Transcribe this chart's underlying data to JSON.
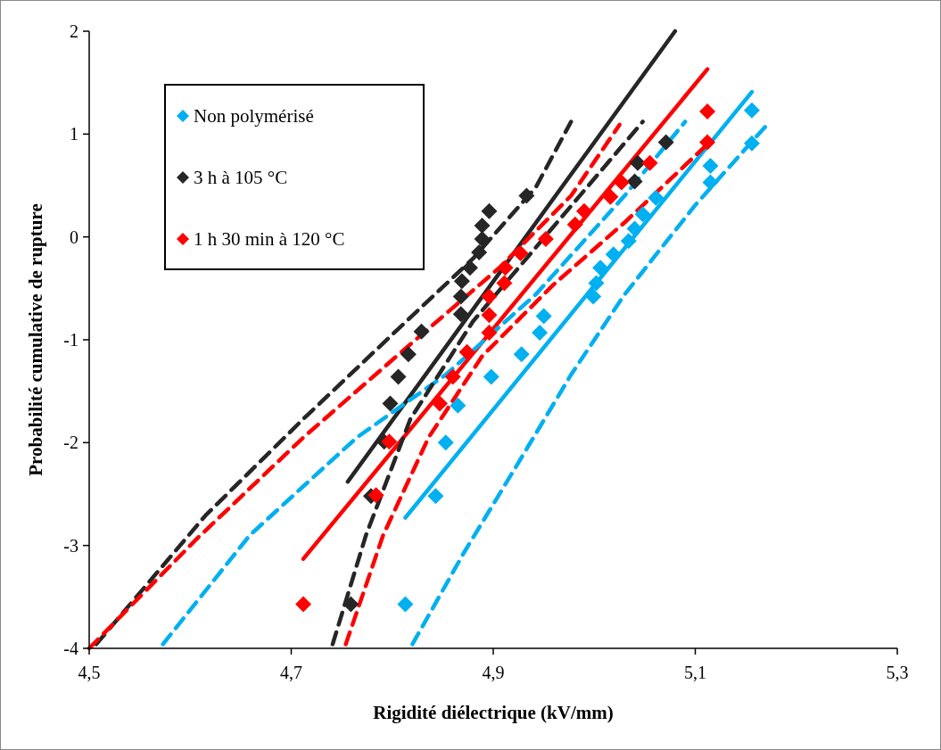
{
  "chart_data": {
    "type": "scatter",
    "xlabel": "Rigidité diélectrique (kV/mm)",
    "ylabel": "Probabilité cumulative de rupture",
    "xlim": [
      4.5,
      5.3
    ],
    "xticks": [
      {
        "value": 4.5,
        "label": "4,5"
      },
      {
        "value": 4.7,
        "label": "4,7"
      },
      {
        "value": 4.9,
        "label": "4,9"
      },
      {
        "value": 5.1,
        "label": "5,1"
      },
      {
        "value": 5.3,
        "label": "5,3"
      }
    ],
    "ylim": [
      -4,
      2
    ],
    "yticks": [
      -4,
      -3,
      -2,
      -1,
      0,
      1,
      2
    ],
    "grid": false,
    "legend": "top left",
    "marker": "diamond",
    "series": [
      {
        "name": "Non polymérisé",
        "color": "#00b0f0",
        "x": [
          4.813,
          4.843,
          4.853,
          4.865,
          4.898,
          4.928,
          4.946,
          4.95,
          4.999,
          5.002,
          5.006,
          5.019,
          5.034,
          5.04,
          5.048,
          5.061,
          5.115,
          5.115,
          5.156,
          5.156
        ],
        "values": [
          -3.57,
          -2.52,
          -2.0,
          -1.64,
          -1.36,
          -1.14,
          -0.93,
          -0.77,
          -0.58,
          -0.45,
          -0.3,
          -0.17,
          -0.04,
          0.08,
          0.22,
          0.38,
          0.53,
          0.69,
          0.91,
          1.23
        ]
      },
      {
        "name": "3 h à 105 °C",
        "color": "#262626",
        "x": [
          4.759,
          4.779,
          4.792,
          4.798,
          4.806,
          4.816,
          4.829,
          4.868,
          4.868,
          4.869,
          4.877,
          4.886,
          4.889,
          4.889,
          4.896,
          4.933,
          5.04,
          5.043,
          5.071
        ],
        "values": [
          -3.57,
          -2.52,
          -1.99,
          -1.62,
          -1.36,
          -1.14,
          -0.92,
          -0.75,
          -0.58,
          -0.43,
          -0.3,
          -0.15,
          -0.02,
          0.11,
          0.25,
          0.4,
          0.54,
          0.72,
          0.92
        ]
      },
      {
        "name": "1 h 30 min à 120 °C",
        "color": "#ff0000",
        "x": [
          4.712,
          4.784,
          4.797,
          4.847,
          4.86,
          4.874,
          4.896,
          4.896,
          4.896,
          4.911,
          4.912,
          4.927,
          4.952,
          4.981,
          4.99,
          5.016,
          5.027,
          5.055,
          5.112,
          5.112
        ],
        "values": [
          -3.57,
          -2.51,
          -1.99,
          -1.62,
          -1.36,
          -1.12,
          -0.93,
          -0.76,
          -0.58,
          -0.45,
          -0.3,
          -0.16,
          -0.02,
          0.12,
          0.25,
          0.39,
          0.53,
          0.72,
          0.92,
          1.22
        ]
      },
      {
        "type": "line",
        "color": "#00b0f0",
        "line_style": "solid",
        "marker": "none",
        "x": [
          4.813,
          5.156
        ],
        "values": [
          -2.73,
          1.41
        ]
      },
      {
        "type": "line",
        "color": "#262626",
        "line_style": "solid",
        "marker": "none",
        "x": [
          4.756,
          5.08
        ],
        "values": [
          -2.38,
          2.0
        ]
      },
      {
        "type": "line",
        "color": "#ff0000",
        "line_style": "solid",
        "marker": "none",
        "x": [
          4.712,
          5.112
        ],
        "values": [
          -3.13,
          1.63
        ]
      },
      {
        "type": "line",
        "color": "#00b0f0",
        "line_style": "dashed",
        "marker": "none",
        "x": [
          4.573,
          4.659,
          4.765,
          4.853,
          4.942,
          5.03,
          5.09
        ],
        "values": [
          -3.96,
          -2.9,
          -1.95,
          -1.34,
          -0.56,
          0.4,
          1.12
        ]
      },
      {
        "type": "line",
        "color": "#00b0f0",
        "line_style": "dashed",
        "marker": "none",
        "x": [
          4.82,
          4.871,
          4.924,
          4.977,
          5.03,
          5.1,
          5.171
        ],
        "values": [
          -3.96,
          -3.07,
          -2.21,
          -1.34,
          -0.56,
          0.31,
          1.09
        ]
      },
      {
        "type": "line",
        "color": "#262626",
        "line_style": "dashed",
        "marker": "none",
        "x": [
          4.507,
          4.615,
          4.712,
          4.8,
          4.88,
          4.942,
          4.977
        ],
        "values": [
          -3.96,
          -2.71,
          -1.77,
          -0.95,
          -0.21,
          0.48,
          1.12
        ]
      },
      {
        "type": "line",
        "color": "#262626",
        "line_style": "dashed",
        "marker": "none",
        "x": [
          4.741,
          4.774,
          4.818,
          4.88,
          5.048
        ],
        "values": [
          -3.96,
          -2.9,
          -1.77,
          -0.82,
          1.12
        ]
      },
      {
        "type": "line",
        "color": "#ff0000",
        "line_style": "dashed",
        "marker": "none",
        "x": [
          4.5,
          4.606,
          4.712,
          4.809,
          4.906,
          4.977,
          5.025
        ],
        "values": [
          -4.0,
          -2.94,
          -1.95,
          -1.12,
          -0.3,
          0.4,
          1.09
        ]
      },
      {
        "type": "line",
        "color": "#ff0000",
        "line_style": "dashed",
        "marker": "none",
        "x": [
          4.754,
          4.791,
          4.836,
          4.889,
          4.959,
          5.03,
          5.114
        ],
        "values": [
          -3.96,
          -2.9,
          -1.95,
          -1.16,
          -0.47,
          0.14,
          0.92
        ]
      }
    ]
  }
}
